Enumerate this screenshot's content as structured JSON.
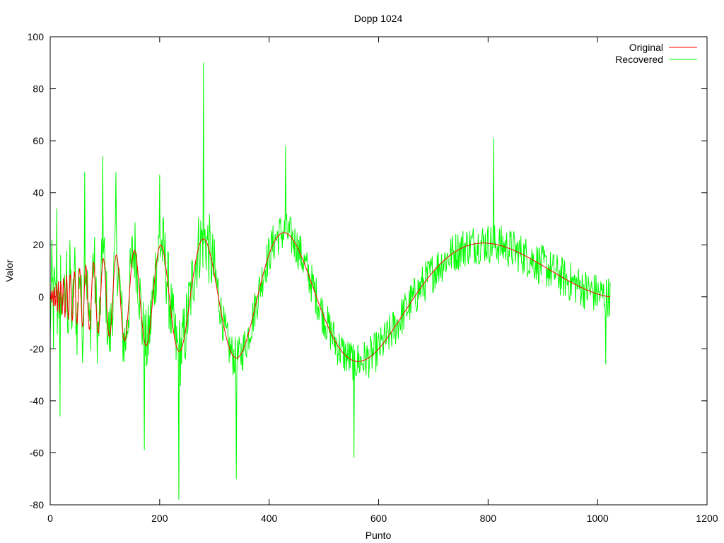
{
  "chart_data": {
    "type": "line",
    "title": "Dopp 1024",
    "xlabel": "Punto",
    "ylabel": "Valor",
    "xlim": [
      0,
      1200
    ],
    "ylim": [
      -80,
      100
    ],
    "xticks": [
      0,
      200,
      400,
      600,
      800,
      1000,
      1200
    ],
    "yticks": [
      -80,
      -60,
      -40,
      -20,
      0,
      20,
      40,
      60,
      80,
      100
    ],
    "grid": false,
    "legend_position": "top-right",
    "series": [
      {
        "name": "Original",
        "color": "#ff0000",
        "function": "doppler",
        "amplitude": 50,
        "shift": 0.05,
        "n_points": 1024
      },
      {
        "name": "Recovered",
        "color": "#00ff00",
        "function": "doppler_with_noise",
        "noise_amplitude": 8,
        "n_points": 1024,
        "notable_points": [
          {
            "x": 0,
            "y": -15
          },
          {
            "x": 3,
            "y": 22
          },
          {
            "x": 6,
            "y": -20
          },
          {
            "x": 12,
            "y": 34
          },
          {
            "x": 18,
            "y": -46
          },
          {
            "x": 63,
            "y": 48
          },
          {
            "x": 96,
            "y": 54
          },
          {
            "x": 120,
            "y": 48
          },
          {
            "x": 172,
            "y": -59
          },
          {
            "x": 200,
            "y": 47
          },
          {
            "x": 235,
            "y": -78
          },
          {
            "x": 280,
            "y": 90
          },
          {
            "x": 340,
            "y": -70
          },
          {
            "x": 430,
            "y": 58
          },
          {
            "x": 555,
            "y": -62
          },
          {
            "x": 810,
            "y": 61
          },
          {
            "x": 1015,
            "y": -26
          }
        ]
      }
    ]
  }
}
